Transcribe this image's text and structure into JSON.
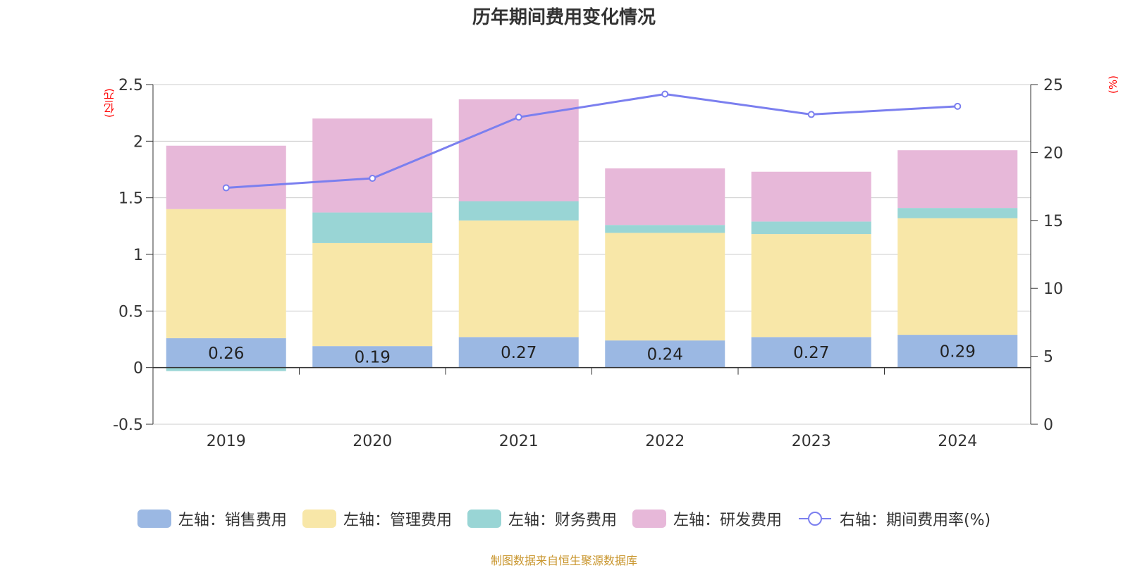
{
  "chart_data": {
    "type": "bar",
    "title": "历年期间费用变化情况",
    "categories": [
      "2019",
      "2020",
      "2021",
      "2022",
      "2023",
      "2024"
    ],
    "stacked": true,
    "y_left": {
      "unit": "(亿元)",
      "ylim": [
        -0.5,
        2.5
      ],
      "ticks": [
        "-0.5",
        "0",
        "0.5",
        "1",
        "1.5",
        "2",
        "2.5"
      ]
    },
    "y_right": {
      "unit": "(%)",
      "ylim": [
        0,
        25
      ],
      "ticks": [
        "0",
        "5",
        "10",
        "15",
        "20",
        "25"
      ]
    },
    "grid": true,
    "legend_position": "bottom",
    "series": [
      {
        "name": "左轴：销售费用",
        "axis": "left",
        "color": "#9bb8e3",
        "values": [
          0.26,
          0.19,
          0.27,
          0.24,
          0.27,
          0.29
        ],
        "labels": [
          "0.26",
          "0.19",
          "0.27",
          "0.24",
          "0.27",
          "0.29"
        ]
      },
      {
        "name": "左轴：管理费用",
        "axis": "left",
        "color": "#f8e7a8",
        "values": [
          1.14,
          0.91,
          1.03,
          0.95,
          0.91,
          1.03
        ]
      },
      {
        "name": "左轴：财务费用",
        "axis": "left",
        "color": "#99d5d5",
        "values": [
          -0.03,
          0.27,
          0.17,
          0.07,
          0.11,
          0.09
        ]
      },
      {
        "name": "左轴：研发费用",
        "axis": "left",
        "color": "#e7b8d9",
        "values": [
          0.56,
          0.83,
          0.9,
          0.5,
          0.44,
          0.51
        ]
      },
      {
        "name": "右轴：期间费用率(%)",
        "axis": "right",
        "type": "line",
        "color": "#7b7fef",
        "values": [
          17.4,
          18.1,
          22.6,
          24.3,
          22.8,
          23.4
        ]
      }
    ]
  },
  "footer": {
    "source": "制图数据来自恒生聚源数据库"
  }
}
